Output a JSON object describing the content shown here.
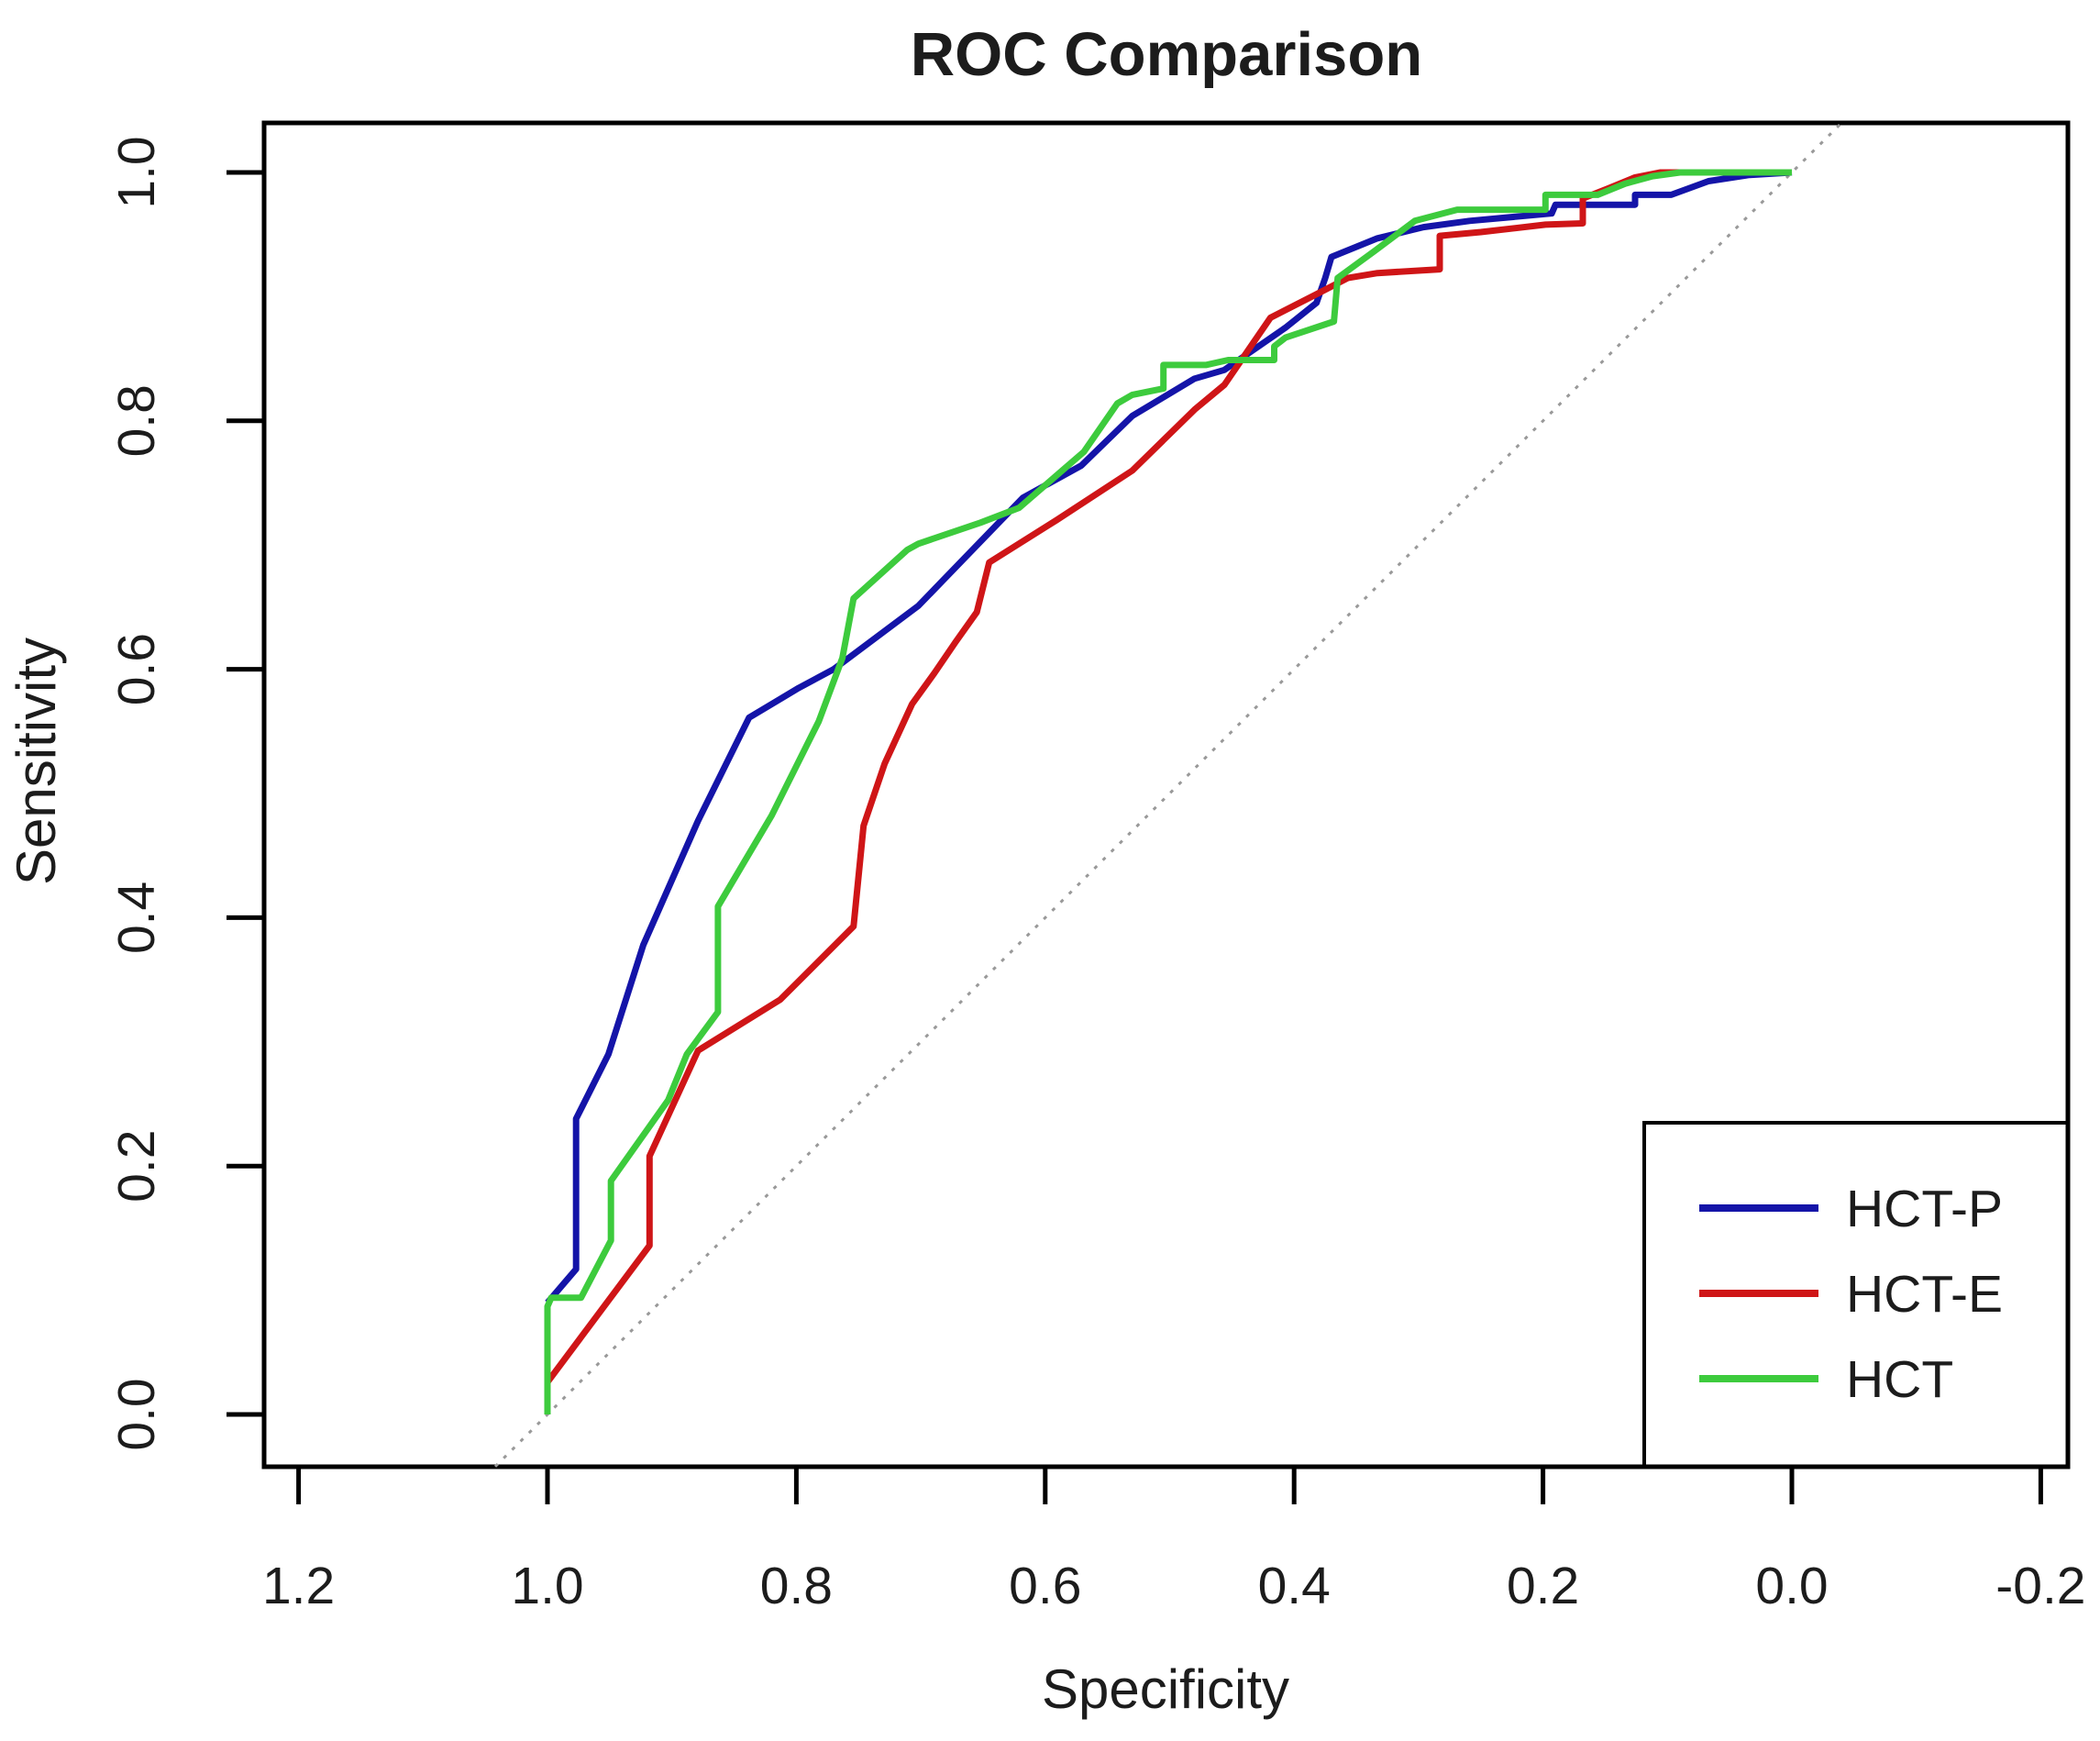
{
  "title": "ROC Comparison",
  "axes": {
    "x_label": "Specificity",
    "y_label": "Sensitivity",
    "x_ticks": [
      {
        "value": 1.2,
        "label": "1.2"
      },
      {
        "value": 1.0,
        "label": "1.0"
      },
      {
        "value": 0.8,
        "label": "0.8"
      },
      {
        "value": 0.6,
        "label": "0.6"
      },
      {
        "value": 0.4,
        "label": "0.4"
      },
      {
        "value": 0.2,
        "label": "0.2"
      },
      {
        "value": 0.0,
        "label": "0.0"
      },
      {
        "value": -0.2,
        "label": "-0.2"
      }
    ],
    "y_ticks": [
      {
        "value": 0.0,
        "label": "0.0"
      },
      {
        "value": 0.2,
        "label": "0.2"
      },
      {
        "value": 0.4,
        "label": "0.4"
      },
      {
        "value": 0.6,
        "label": "0.6"
      },
      {
        "value": 0.8,
        "label": "0.8"
      },
      {
        "value": 1.0,
        "label": "1.0"
      }
    ]
  },
  "legend": {
    "entries": [
      {
        "label": "HCT-P",
        "color": "#1414a8"
      },
      {
        "label": "HCT-E",
        "color": "#cf1517"
      },
      {
        "label": "HCT",
        "color": "#3dcb3d"
      }
    ]
  },
  "chart_data": {
    "type": "line",
    "title": "ROC Comparison",
    "xlabel": "Specificity",
    "ylabel": "Sensitivity",
    "x_axis_reversed": true,
    "xlim": [
      1.228,
      -0.222
    ],
    "ylim": [
      -0.042,
      1.04
    ],
    "grid": false,
    "legend_position": "bottom-right",
    "reference_line": {
      "style": "dotted",
      "color": "#999999",
      "points": [
        [
          1.042,
          -0.042
        ],
        [
          -0.04,
          1.04
        ]
      ]
    },
    "series": [
      {
        "name": "HCT-P",
        "color": "#1414a8",
        "points": [
          [
            1.0,
            0.09
          ],
          [
            0.977,
            0.117
          ],
          [
            0.977,
            0.238
          ],
          [
            0.951,
            0.29
          ],
          [
            0.923,
            0.378
          ],
          [
            0.879,
            0.478
          ],
          [
            0.838,
            0.561
          ],
          [
            0.798,
            0.585
          ],
          [
            0.77,
            0.6
          ],
          [
            0.702,
            0.651
          ],
          [
            0.618,
            0.738
          ],
          [
            0.571,
            0.764
          ],
          [
            0.53,
            0.804
          ],
          [
            0.48,
            0.834
          ],
          [
            0.456,
            0.841
          ],
          [
            0.407,
            0.875
          ],
          [
            0.382,
            0.895
          ],
          [
            0.375,
            0.915
          ],
          [
            0.37,
            0.932
          ],
          [
            0.333,
            0.947
          ],
          [
            0.296,
            0.956
          ],
          [
            0.259,
            0.961
          ],
          [
            0.193,
            0.967
          ],
          [
            0.19,
            0.974
          ],
          [
            0.126,
            0.974
          ],
          [
            0.126,
            0.982
          ],
          [
            0.097,
            0.982
          ],
          [
            0.067,
            0.993
          ],
          [
            0.034,
            0.998
          ],
          [
            0.0,
            1.0
          ]
        ]
      },
      {
        "name": "HCT-E",
        "color": "#cf1517",
        "points": [
          [
            1.0,
            0.026
          ],
          [
            0.918,
            0.136
          ],
          [
            0.918,
            0.208
          ],
          [
            0.879,
            0.293
          ],
          [
            0.813,
            0.334
          ],
          [
            0.754,
            0.393
          ],
          [
            0.746,
            0.474
          ],
          [
            0.729,
            0.524
          ],
          [
            0.707,
            0.572
          ],
          [
            0.689,
            0.597
          ],
          [
            0.672,
            0.622
          ],
          [
            0.655,
            0.646
          ],
          [
            0.645,
            0.686
          ],
          [
            0.591,
            0.72
          ],
          [
            0.53,
            0.76
          ],
          [
            0.48,
            0.809
          ],
          [
            0.456,
            0.829
          ],
          [
            0.419,
            0.883
          ],
          [
            0.382,
            0.902
          ],
          [
            0.357,
            0.915
          ],
          [
            0.333,
            0.919
          ],
          [
            0.283,
            0.922
          ],
          [
            0.283,
            0.949
          ],
          [
            0.25,
            0.952
          ],
          [
            0.198,
            0.958
          ],
          [
            0.168,
            0.959
          ],
          [
            0.168,
            0.979
          ],
          [
            0.148,
            0.987
          ],
          [
            0.126,
            0.996
          ],
          [
            0.106,
            1.0
          ],
          [
            0.0,
            1.0
          ]
        ]
      },
      {
        "name": "HCT",
        "color": "#3dcb3d",
        "points": [
          [
            1.0,
            0.0
          ],
          [
            1.0,
            0.087
          ],
          [
            0.997,
            0.094
          ],
          [
            0.973,
            0.094
          ],
          [
            0.949,
            0.14
          ],
          [
            0.949,
            0.188
          ],
          [
            0.903,
            0.253
          ],
          [
            0.888,
            0.29
          ],
          [
            0.863,
            0.324
          ],
          [
            0.863,
            0.409
          ],
          [
            0.82,
            0.482
          ],
          [
            0.782,
            0.558
          ],
          [
            0.763,
            0.609
          ],
          [
            0.754,
            0.657
          ],
          [
            0.711,
            0.696
          ],
          [
            0.702,
            0.701
          ],
          [
            0.652,
            0.718
          ],
          [
            0.621,
            0.73
          ],
          [
            0.569,
            0.775
          ],
          [
            0.542,
            0.814
          ],
          [
            0.53,
            0.821
          ],
          [
            0.505,
            0.826
          ],
          [
            0.505,
            0.845
          ],
          [
            0.471,
            0.845
          ],
          [
            0.453,
            0.849
          ],
          [
            0.416,
            0.849
          ],
          [
            0.416,
            0.86
          ],
          [
            0.407,
            0.867
          ],
          [
            0.368,
            0.88
          ],
          [
            0.365,
            0.915
          ],
          [
            0.335,
            0.937
          ],
          [
            0.303,
            0.961
          ],
          [
            0.269,
            0.97
          ],
          [
            0.198,
            0.97
          ],
          [
            0.198,
            0.982
          ],
          [
            0.156,
            0.982
          ],
          [
            0.134,
            0.991
          ],
          [
            0.112,
            0.997
          ],
          [
            0.09,
            1.0
          ],
          [
            0.0,
            1.0
          ]
        ]
      }
    ]
  }
}
